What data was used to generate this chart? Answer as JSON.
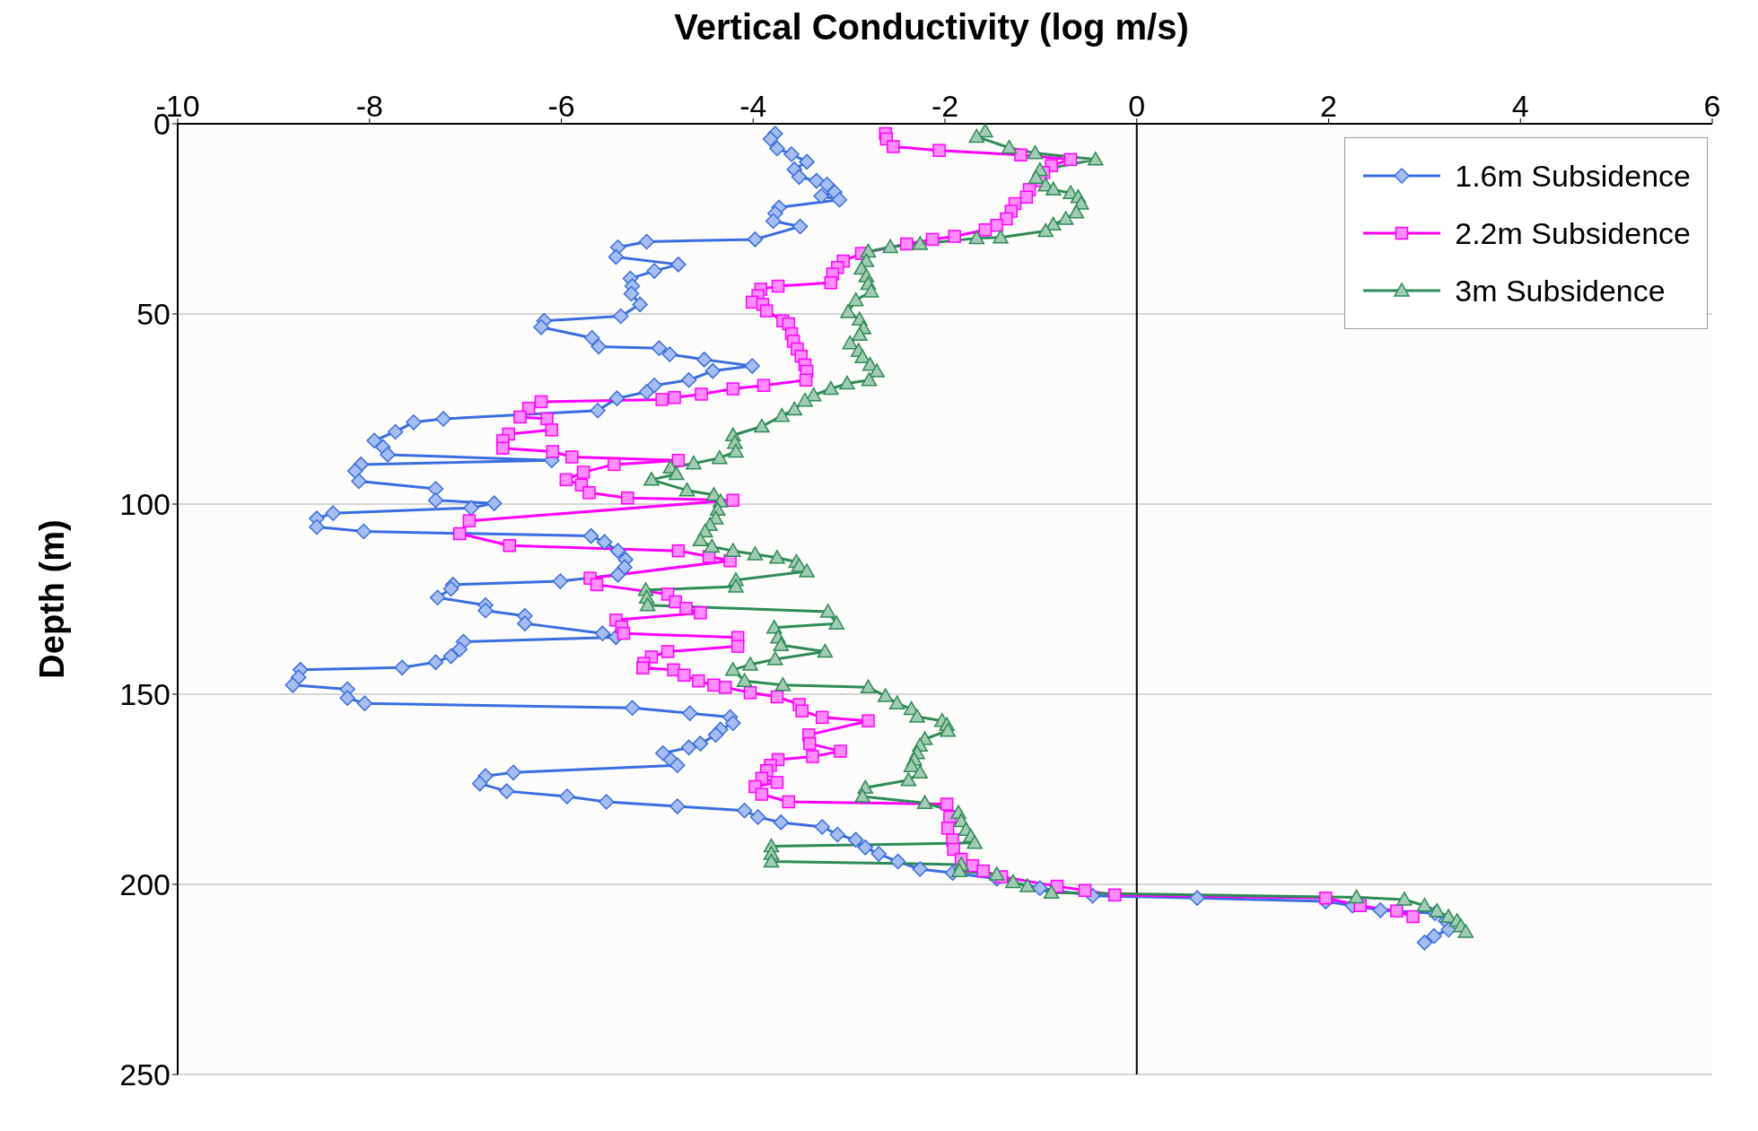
{
  "chart_data": {
    "type": "line",
    "xlabel": "Vertical Conductivity (log m/s)",
    "ylabel": "Depth (m)",
    "xlim": [
      -10,
      6
    ],
    "xticks": [
      -10,
      -8,
      -6,
      -4,
      -2,
      0,
      2,
      4,
      6
    ],
    "ylim": [
      250,
      0
    ],
    "yticks": [
      0,
      50,
      100,
      150,
      200,
      250
    ],
    "grid": "y",
    "legend": "top right",
    "line_style": "solid",
    "ref_lines": [
      {
        "axis": "x",
        "value": 0,
        "color": "#000000"
      }
    ],
    "series": [
      {
        "name": "1.6m Subsidence",
        "color": "#3a6de0",
        "marker": "diamond",
        "x": [
          -3.77,
          -3.82,
          -3.75,
          -3.6,
          -3.44,
          -3.57,
          -3.52,
          -3.34,
          -3.23,
          -3.15,
          -3.29,
          -3.1,
          -3.73,
          -3.77,
          -3.79,
          -3.51,
          -3.98,
          -5.11,
          -5.41,
          -5.43,
          -4.78,
          -5.03,
          -5.28,
          -5.26,
          -5.27,
          -5.18,
          -5.38,
          -6.18,
          -6.21,
          -5.68,
          -5.61,
          -4.98,
          -4.87,
          -4.51,
          -4.01,
          -4.42,
          -4.67,
          -5.03,
          -5.11,
          -5.42,
          -5.62,
          -7.23,
          -7.54,
          -7.73,
          -7.95,
          -7.86,
          -7.81,
          -6.1,
          -8.09,
          -8.15,
          -8.11,
          -7.31,
          -7.31,
          -6.7,
          -6.94,
          -8.38,
          -8.55,
          -8.55,
          -8.06,
          -5.69,
          -5.55,
          -5.41,
          -5.33,
          -5.34,
          -5.41,
          -6.01,
          -7.13,
          -7.15,
          -7.29,
          -6.79,
          -6.79,
          -6.38,
          -6.38,
          -5.57,
          -5.43,
          -7.02,
          -7.06,
          -7.15,
          -7.31,
          -7.66,
          -8.72,
          -8.74,
          -8.8,
          -8.23,
          -8.23,
          -8.05,
          -5.26,
          -4.66,
          -4.24,
          -4.21,
          -4.34,
          -4.39,
          -4.55,
          -4.67,
          -4.94,
          -4.86,
          -4.79,
          -6.5,
          -6.79,
          -6.85,
          -6.57,
          -5.94,
          -5.53,
          -4.79,
          -4.09,
          -3.95,
          -3.71,
          -3.28,
          -3.12,
          -2.93,
          -2.83,
          -2.69,
          -2.49,
          -2.26,
          -1.92,
          -1.46,
          -1.01,
          -0.46,
          0.63,
          1.97,
          2.25,
          2.54,
          3.11,
          3.22,
          3.25,
          3.1,
          3.0
        ],
        "values": [
          2.6,
          4,
          6.5,
          8,
          10,
          12,
          14,
          15,
          16,
          18,
          19,
          20,
          22,
          23.6,
          25.6,
          27,
          30.4,
          31,
          32.5,
          35,
          37,
          38.7,
          40.7,
          42.7,
          44.7,
          47.5,
          50.6,
          51.8,
          53.5,
          56.3,
          58.6,
          59,
          60.6,
          62,
          63.7,
          65,
          67.4,
          68.8,
          70.5,
          72.2,
          75.4,
          77.6,
          78.5,
          81,
          83.3,
          85,
          87,
          88.5,
          89.6,
          91.3,
          94,
          96,
          99,
          99.8,
          101,
          102.4,
          103.8,
          106,
          107.2,
          108.4,
          110,
          112.3,
          114.6,
          116.6,
          118.6,
          120.3,
          121.2,
          122.3,
          124.6,
          126.6,
          128,
          129.4,
          131.4,
          134,
          135,
          136.2,
          138.2,
          140,
          141.6,
          143,
          143.6,
          145.6,
          147.6,
          148.7,
          151,
          152.4,
          153.6,
          155,
          156,
          157.6,
          159.3,
          160.7,
          163,
          164,
          165.5,
          167.2,
          168.7,
          170.6,
          171.5,
          173.5,
          175.5,
          176.9,
          178.3,
          179.5,
          180.6,
          182.3,
          183.7,
          184.9,
          186.9,
          188.3,
          190.3,
          192,
          194,
          196,
          197,
          198.5,
          201,
          203,
          203.6,
          204.5,
          205.6,
          206.8,
          207.6,
          209.6,
          211.9,
          213.6,
          215.3
        ]
      },
      {
        "name": "2.2m Subsidence",
        "color": "#ff00ff",
        "marker": "square",
        "x": [
          -2.62,
          -2.61,
          -2.54,
          -2.06,
          -1.21,
          -0.69,
          -0.89,
          -0.97,
          -1.01,
          -1.12,
          -1.15,
          -1.27,
          -1.31,
          -1.36,
          -1.46,
          -1.58,
          -1.9,
          -2.13,
          -2.4,
          -2.87,
          -3.06,
          -3.12,
          -3.17,
          -3.19,
          -3.74,
          -3.92,
          -3.95,
          -4.01,
          -3.9,
          -3.86,
          -3.69,
          -3.63,
          -3.6,
          -3.58,
          -3.54,
          -3.5,
          -3.46,
          -3.44,
          -3.45,
          -3.89,
          -4.21,
          -4.54,
          -4.82,
          -4.95,
          -6.21,
          -6.34,
          -6.43,
          -6.15,
          -6.1,
          -6.55,
          -6.61,
          -6.61,
          -6.09,
          -5.89,
          -4.78,
          -5.45,
          -5.77,
          -5.95,
          -5.79,
          -5.71,
          -5.31,
          -4.21,
          -6.96,
          -7.06,
          -6.54,
          -4.78,
          -4.46,
          -4.24,
          -5.7,
          -5.63,
          -4.89,
          -4.81,
          -4.7,
          -4.55,
          -5.43,
          -5.37,
          -5.35,
          -4.16,
          -4.16,
          -4.89,
          -5.06,
          -5.14,
          -5.15,
          -4.83,
          -4.72,
          -4.57,
          -4.41,
          -4.29,
          -4.03,
          -3.75,
          -3.52,
          -3.49,
          -3.28,
          -2.8,
          -3.42,
          -3.41,
          -3.09,
          -3.38,
          -3.74,
          -3.82,
          -3.86,
          -3.91,
          -3.75,
          -3.98,
          -3.91,
          -3.63,
          -1.98,
          -1.95,
          -1.97,
          -1.92,
          -1.91,
          -1.83,
          -1.71,
          -1.6,
          -1.41,
          -0.83,
          -0.54,
          -0.23,
          1.97,
          2.33,
          2.71,
          2.88
        ],
        "values": [
          2.6,
          4,
          6,
          7,
          8.2,
          9.4,
          11,
          12.8,
          15,
          17.3,
          19.3,
          21,
          23,
          25,
          26.7,
          27.9,
          29.6,
          30.4,
          31.6,
          34.1,
          36.1,
          37.8,
          39.5,
          41.8,
          42.7,
          43.5,
          45.2,
          46.9,
          47.5,
          49.2,
          51.8,
          52.6,
          55.2,
          57.2,
          59.2,
          61.1,
          63.4,
          65.1,
          67.4,
          68.8,
          69.7,
          71.1,
          72,
          72.5,
          73.1,
          74.8,
          77.1,
          77.6,
          80.5,
          81.6,
          83.3,
          85.3,
          86.2,
          87.6,
          88.5,
          89.6,
          91.6,
          93.6,
          95,
          97,
          98.4,
          99,
          104.4,
          107.8,
          110.9,
          112.3,
          113.8,
          114.9,
          119.5,
          121.2,
          123.7,
          125.7,
          127.4,
          128.6,
          130.5,
          132.3,
          134,
          135.1,
          137.4,
          138.8,
          140.2,
          141.9,
          143.1,
          143.6,
          145,
          146.5,
          147.6,
          148.2,
          149.6,
          150.7,
          152.7,
          154.4,
          156.1,
          157,
          160.7,
          163,
          165,
          166.4,
          167.2,
          168.7,
          170.1,
          172.1,
          173.2,
          174.3,
          176.3,
          178.3,
          178.9,
          182.3,
          185.2,
          188.3,
          190.8,
          193.4,
          195.1,
          196.5,
          198,
          200.5,
          201.6,
          202.8,
          203.6,
          205.6,
          207,
          208.5
        ]
      },
      {
        "name": "3m Subsidence",
        "color": "#2e8b57",
        "marker": "triangle",
        "x": [
          -1.58,
          -1.67,
          -1.33,
          -1.06,
          -0.43,
          -1.01,
          -1.05,
          -0.95,
          -0.87,
          -0.69,
          -0.61,
          -0.58,
          -0.63,
          -0.74,
          -0.87,
          -0.95,
          -1.42,
          -1.67,
          -2.26,
          -2.57,
          -2.8,
          -2.82,
          -2.87,
          -2.82,
          -2.8,
          -2.77,
          -2.93,
          -3.01,
          -2.89,
          -2.85,
          -2.89,
          -2.99,
          -2.9,
          -2.86,
          -2.78,
          -2.71,
          -2.79,
          -3.02,
          -3.19,
          -3.37,
          -3.46,
          -3.57,
          -3.7,
          -3.91,
          -4.21,
          -4.19,
          -4.18,
          -4.35,
          -4.62,
          -4.86,
          -4.8,
          -5.06,
          -4.69,
          -4.41,
          -4.34,
          -4.37,
          -4.39,
          -4.45,
          -4.5,
          -4.55,
          -4.43,
          -4.21,
          -3.98,
          -3.75,
          -3.55,
          -3.52,
          -3.44,
          -4.18,
          -4.18,
          -5.12,
          -5.11,
          -5.1,
          -3.22,
          -3.13,
          -3.78,
          -3.74,
          -3.71,
          -3.25,
          -3.77,
          -4.03,
          -4.21,
          -4.09,
          -3.69,
          -2.8,
          -2.62,
          -2.5,
          -2.35,
          -2.29,
          -2.03,
          -1.98,
          -1.97,
          -2.21,
          -2.26,
          -2.29,
          -2.32,
          -2.35,
          -2.26,
          -2.38,
          -2.83,
          -2.86,
          -2.21,
          -1.86,
          -1.83,
          -1.78,
          -1.73,
          -1.69,
          -3.81,
          -3.81,
          -3.81,
          -1.83,
          -1.85,
          -1.46,
          -1.29,
          -1.14,
          -0.89,
          2.29,
          2.79,
          3.0,
          3.13,
          3.25,
          3.34,
          3.38,
          3.43
        ],
        "values": [
          2,
          3.4,
          6.3,
          7.7,
          9.4,
          12.2,
          14.2,
          16.2,
          17.3,
          18.2,
          19.3,
          21,
          23.3,
          25,
          26.5,
          28.2,
          29.9,
          30.1,
          31.6,
          32.4,
          33.6,
          36.1,
          38.1,
          40.1,
          42.1,
          44.1,
          46.4,
          49.5,
          51.5,
          53.8,
          55.5,
          57.7,
          59.7,
          61.4,
          63.4,
          65.1,
          67.4,
          68.3,
          69.7,
          71.4,
          72.8,
          75.1,
          76.8,
          79.6,
          81.9,
          83.9,
          86.2,
          87.9,
          89.3,
          90.4,
          92.1,
          93.6,
          96.4,
          97.6,
          99.3,
          101.5,
          103.8,
          105.5,
          107.2,
          109.5,
          111.2,
          112.3,
          113.2,
          114.1,
          115.2,
          116.3,
          117.7,
          120,
          121.7,
          122.6,
          124.6,
          126.6,
          128.3,
          131.4,
          132.5,
          135.1,
          137.1,
          138.8,
          140.8,
          142.2,
          143.6,
          146.5,
          147.6,
          148.2,
          150.5,
          152.4,
          153.9,
          155.9,
          157,
          158.1,
          159.6,
          161.8,
          163.5,
          165.5,
          167.2,
          168.9,
          170.6,
          172.6,
          174.6,
          176.9,
          178.6,
          181.2,
          183.4,
          185.7,
          187.4,
          189.1,
          190,
          192,
          194,
          194.8,
          196.5,
          197.4,
          199.4,
          200.5,
          202.2,
          203.4,
          204,
          205.6,
          207,
          208.5,
          209.6,
          211,
          212.5
        ]
      }
    ]
  }
}
